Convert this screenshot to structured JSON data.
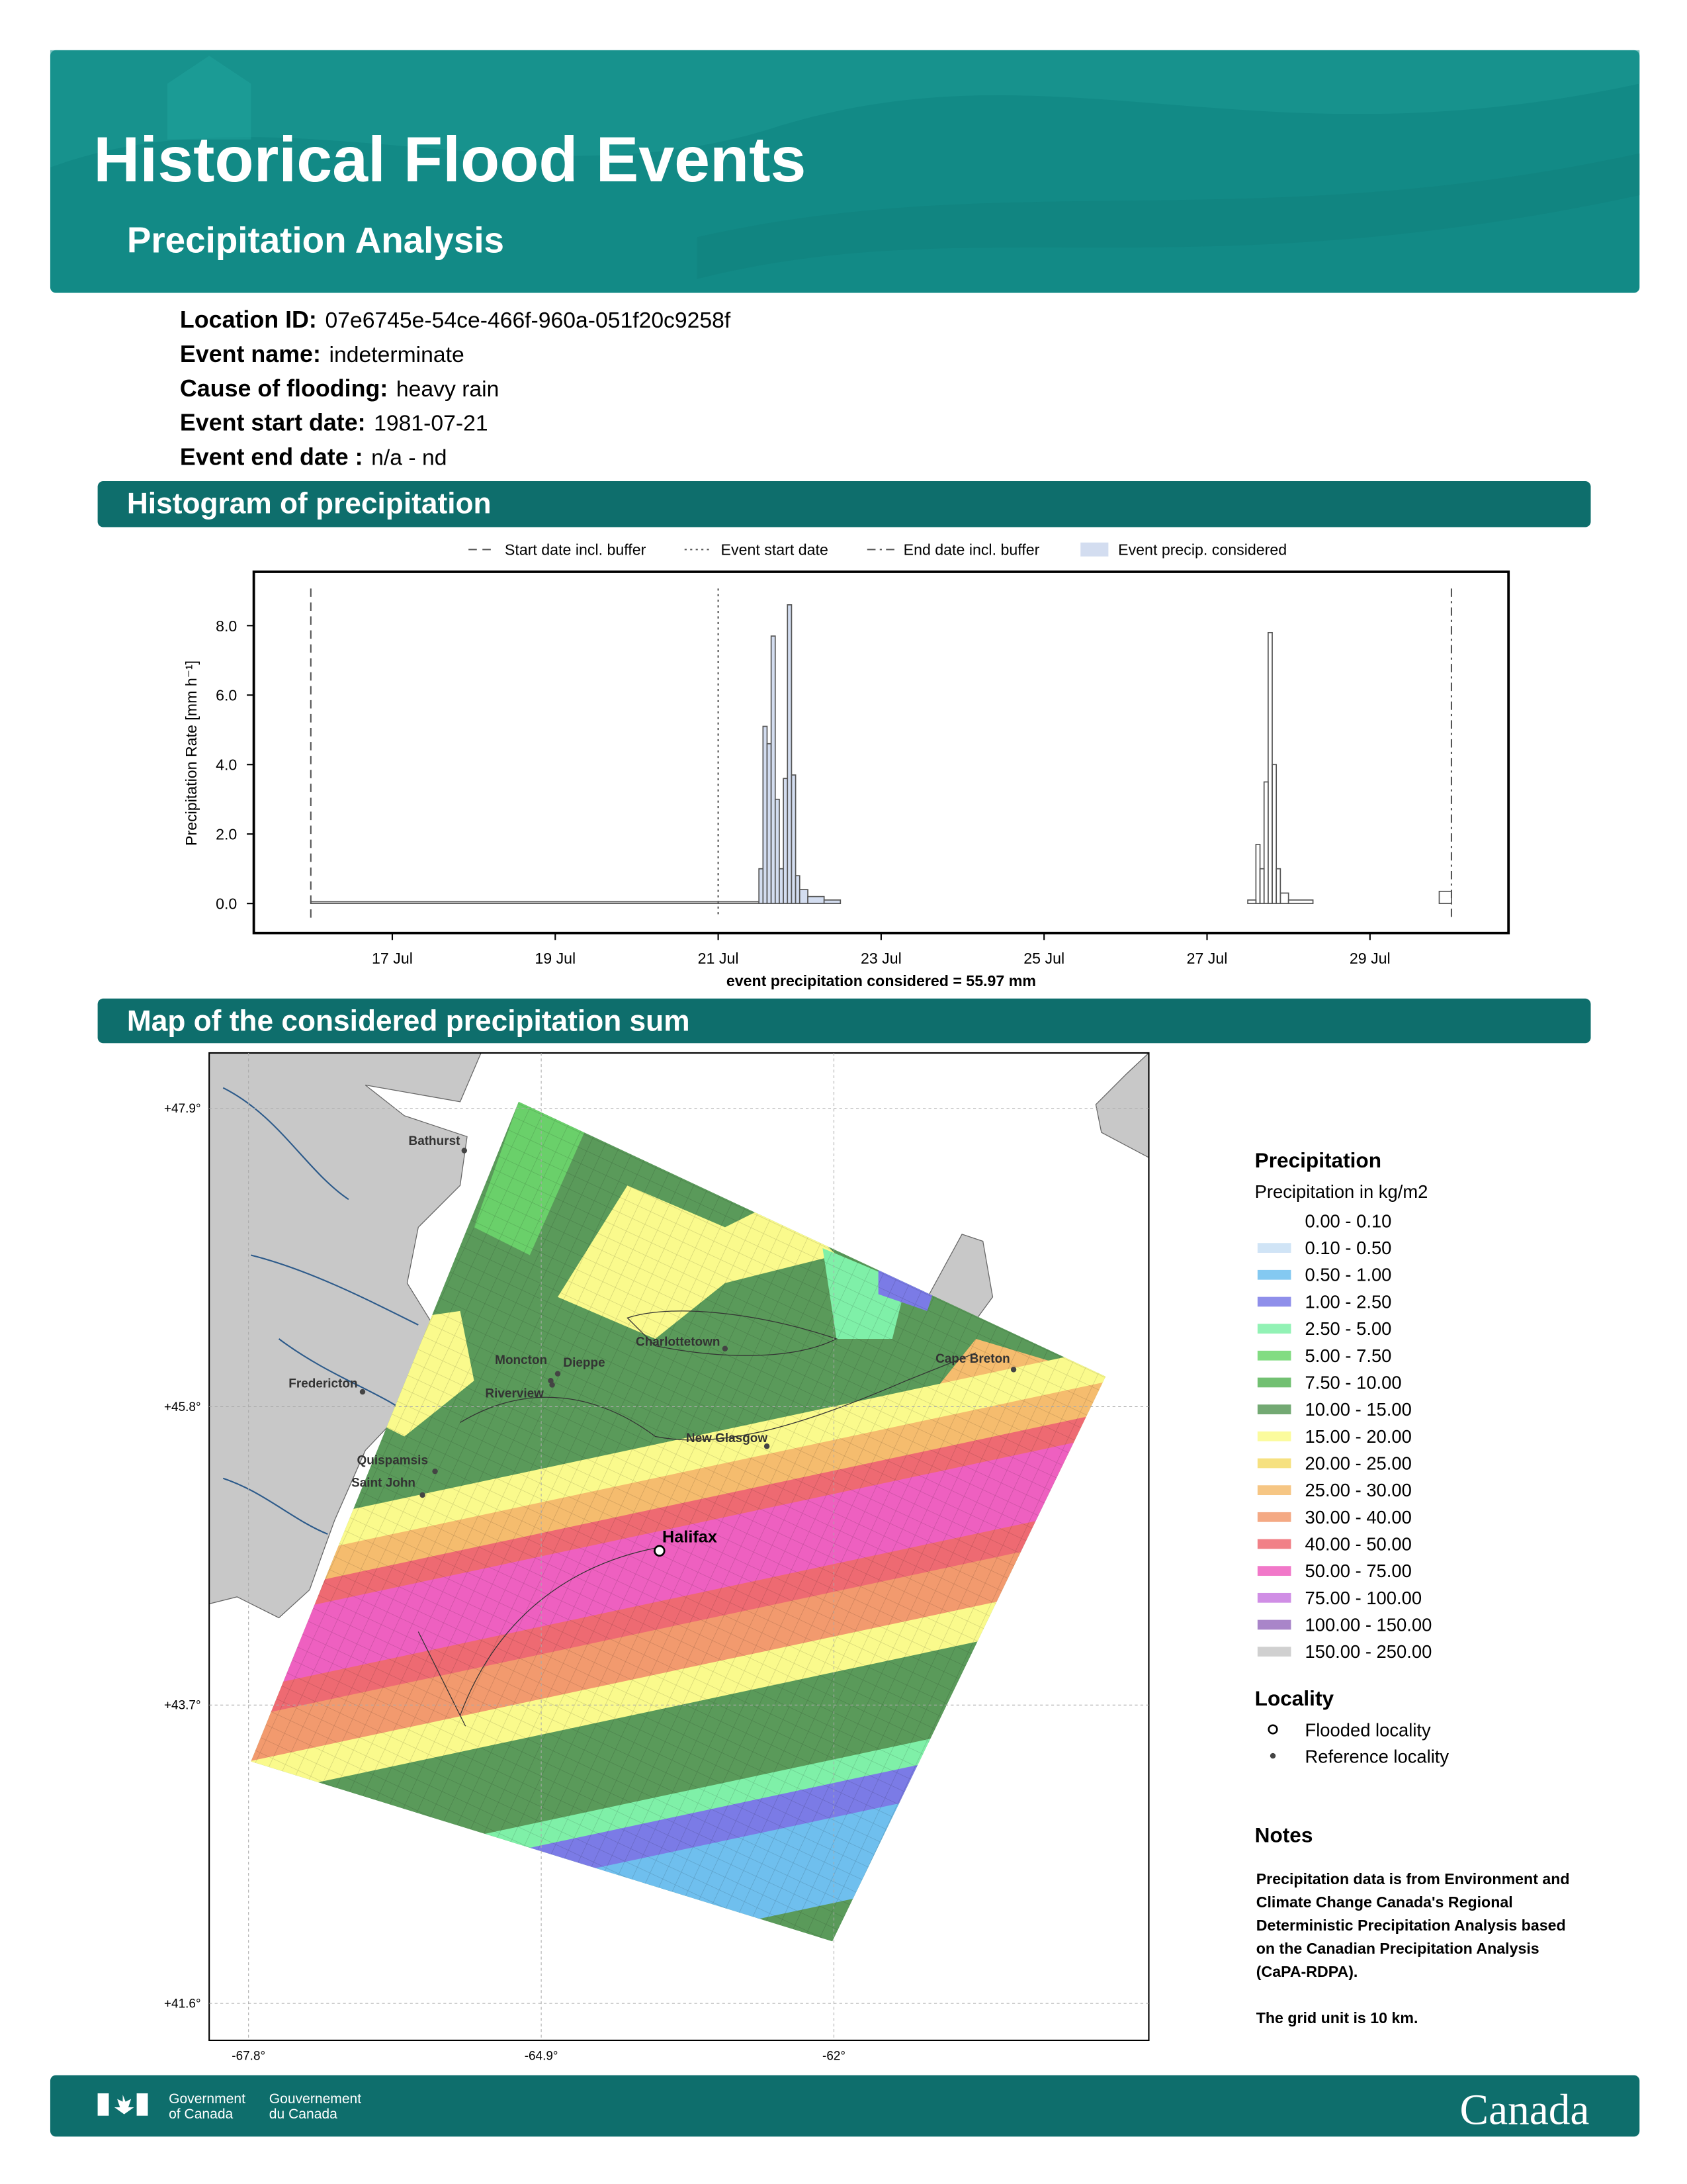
{
  "header": {
    "title": "Historical Flood Events",
    "subtitle": "Precipitation Analysis"
  },
  "info": [
    {
      "label": "Location ID:",
      "value": "07e6745e-54ce-466f-960a-051f20c9258f"
    },
    {
      "label": "Event name:",
      "value": "indeterminate"
    },
    {
      "label": "Cause of flooding:",
      "value": "heavy rain"
    },
    {
      "label": "Event start date:",
      "value": "1981-07-21"
    },
    {
      "label": "Event end date :",
      "value": "n/a - nd"
    }
  ],
  "sections": [
    "Histogram of precipitation",
    "Map of the considered precipitation sum"
  ],
  "chart_data": {
    "type": "histogram",
    "y_label": "Precipitation Rate [mm h⁻¹]",
    "annotation": "event precipitation considered = 55.97 mm",
    "x": [
      16.0,
      21.5,
      21.55,
      21.6,
      21.65,
      21.7,
      21.75,
      21.8,
      21.85,
      21.9,
      21.95,
      22.0,
      22.1,
      22.3,
      22.5,
      27.5,
      27.6,
      27.65,
      27.7,
      27.75,
      27.8,
      27.85,
      27.9,
      28.0,
      28.3,
      29.85,
      30.0
    ],
    "values": [
      0.05,
      1.0,
      5.1,
      4.6,
      7.7,
      3.0,
      1.0,
      3.6,
      8.6,
      3.7,
      0.8,
      0.4,
      0.2,
      0.1,
      0.0,
      0.1,
      1.7,
      1.0,
      3.5,
      7.8,
      4.0,
      1.0,
      0.3,
      0.1,
      0.0,
      0.35,
      0.0
    ],
    "color": "#555555",
    "xlim": [
      15.3,
      30.7
    ],
    "ylim": [
      -0.85,
      9.55
    ],
    "xticks": [
      {
        "value": 17,
        "label": "17 Jul"
      },
      {
        "value": 19,
        "label": "19 Jul"
      },
      {
        "value": 21,
        "label": "21 Jul"
      },
      {
        "value": 23,
        "label": "23 Jul"
      },
      {
        "value": 25,
        "label": "25 Jul"
      },
      {
        "value": 27,
        "label": "27 Jul"
      },
      {
        "value": 29,
        "label": "29 Jul"
      }
    ],
    "yticks": [
      {
        "value": 0,
        "label": "0.0"
      },
      {
        "value": 2,
        "label": "2.0"
      },
      {
        "value": 4,
        "label": "4.0"
      },
      {
        "value": 6,
        "label": "6.0"
      },
      {
        "value": 8,
        "label": "8.0"
      }
    ],
    "reference_lines": [
      {
        "name": "Start date incl. buffer",
        "x": 16.0,
        "dash": "dashed"
      },
      {
        "name": "Event start date",
        "x": 21.0,
        "dash": "dotted"
      },
      {
        "name": "End date incl. buffer",
        "x": 30.0,
        "dash": "dashdot"
      }
    ],
    "considered": {
      "name": "Event precip. considered",
      "xlim": [
        21.0,
        22.5
      ],
      "color": "#d3ddf0"
    }
  },
  "map": {
    "lat_lim": [
      41.34,
      48.29
    ],
    "lon_lim": [
      -68.19,
      -58.88
    ],
    "lat_ticks": [
      {
        "value": 47.9,
        "label": "+47.9°"
      },
      {
        "value": 45.8,
        "label": "+45.8°"
      },
      {
        "value": 43.7,
        "label": "+43.7°"
      },
      {
        "value": 41.6,
        "label": "+41.6°"
      }
    ],
    "lon_ticks": [
      {
        "value": -67.8,
        "label": "-67.8°"
      },
      {
        "value": -64.9,
        "label": "-64.9°"
      },
      {
        "value": -62,
        "label": "-62°"
      }
    ],
    "flooded": [
      "Halifax"
    ],
    "reference": [
      "Bathurst",
      "Moncton",
      "Dieppe",
      "Riverview",
      "Charlottetown",
      "Fredericton",
      "Cape Breton",
      "New Glasgow",
      "Quispamsis",
      "Saint John"
    ]
  },
  "legend": {
    "title": "Precipitation",
    "subtitle": "Precipitation in kg/m2",
    "items": [
      {
        "label": "0.00 - 0.10",
        "color": "#ffffff"
      },
      {
        "label": "0.10 - 0.50",
        "color": "#c8dff5"
      },
      {
        "label": "0.50 - 1.00",
        "color": "#6fbfee"
      },
      {
        "label": "1.00 - 2.50",
        "color": "#7b7be6"
      },
      {
        "label": "2.50 - 5.00",
        "color": "#7ff0a8"
      },
      {
        "label": "5.00 - 7.50",
        "color": "#6cd66c"
      },
      {
        "label": "7.50 - 10.00",
        "color": "#59b559"
      },
      {
        "label": "10.00 - 15.00",
        "color": "#5a9a5a"
      },
      {
        "label": "15.00 - 20.00",
        "color": "#fafa8c"
      },
      {
        "label": "20.00 - 25.00",
        "color": "#f5dc6a"
      },
      {
        "label": "25.00 - 30.00",
        "color": "#f5bc6e"
      },
      {
        "label": "30.00 - 40.00",
        "color": "#f29a6e"
      },
      {
        "label": "40.00 - 50.00",
        "color": "#ee6a72"
      },
      {
        "label": "50.00 - 75.00",
        "color": "#ee60c0"
      },
      {
        "label": "75.00 - 100.00",
        "color": "#c87ae0"
      },
      {
        "label": "100.00 - 150.00",
        "color": "#9a70c0"
      },
      {
        "label": "150.00 - 250.00",
        "color": "#c8c8c8"
      }
    ],
    "locality_title": "Locality",
    "locality_items": [
      "Flooded locality",
      "Reference locality"
    ],
    "notes_title": "Notes",
    "notes": [
      [
        "Precipitation data is from Environment and",
        "Climate Change Canada's Regional",
        "Deterministic Precipitation Analysis based",
        "on the Canadian Precipitation Analysis",
        "(CaPA-RDPA)."
      ],
      [
        "The grid unit is 10 km."
      ]
    ]
  },
  "footer": {
    "gov_en": [
      "Government",
      "of Canada"
    ],
    "gov_fr": [
      "Gouvernement",
      "du Canada"
    ],
    "wordmark": "Canada"
  }
}
